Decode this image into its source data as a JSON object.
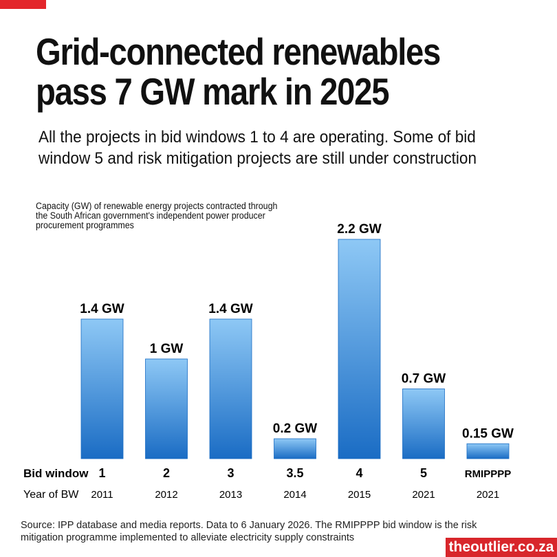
{
  "title": "Grid-connected renewables pass 7 GW mark in 2025",
  "subtitle": "All the projects in bid windows 1 to 4 are operating. Some of bid window 5 and risk mitigation projects are still under construction",
  "source": "Source: IPP database and media reports. Data to 6 January 2026. The RMIPPPP bid window is the risk mitigation programme implemented to alleviate electricity supply constraints",
  "brand": "theoutlier.co.za",
  "colors": {
    "accent": "#e3262b",
    "bar_top": "#8ec8f5",
    "bar_bottom": "#1a6cc4"
  },
  "chart_data": {
    "type": "bar",
    "ylabel": "Capacity (GW) of renewable energy projects contracted through the South African government's independent power producer procurement programmes",
    "row_labels": {
      "bid_window": "Bid window",
      "year": "Year of BW"
    },
    "categories": [
      "1",
      "2",
      "3",
      "3.5",
      "4",
      "5",
      "RMIPPPP"
    ],
    "years": [
      "2011",
      "2012",
      "2013",
      "2014",
      "2015",
      "2021",
      "2021"
    ],
    "values": [
      1.4,
      1,
      1.4,
      0.2,
      2.2,
      0.7,
      0.15
    ],
    "data_labels": [
      "1.4 GW",
      "1 GW",
      "1.4 GW",
      "0.2 GW",
      "2.2 GW",
      "0.7 GW",
      "0.15 GW"
    ],
    "ylim": [
      0,
      2.2
    ],
    "grid": false
  }
}
